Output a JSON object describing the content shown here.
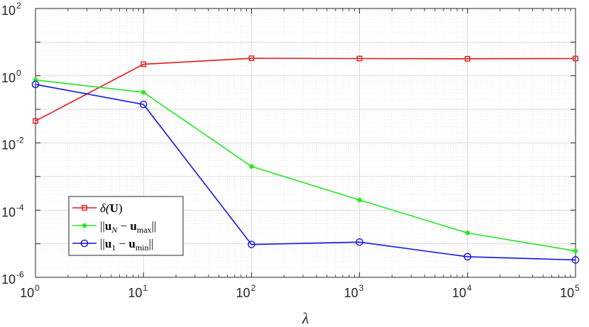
{
  "chart_data": {
    "type": "line",
    "xscale": "log",
    "yscale": "log",
    "xlim": [
      1,
      100000
    ],
    "ylim": [
      1e-06,
      100
    ],
    "xlabel": "λ",
    "ylabel": "",
    "grid": true,
    "minor_grid": true,
    "legend_position": "lower-left",
    "x": [
      1,
      10,
      100,
      1000,
      10000,
      100000
    ],
    "xticks": [
      {
        "base": "10",
        "exp": "0"
      },
      {
        "base": "10",
        "exp": "1"
      },
      {
        "base": "10",
        "exp": "2"
      },
      {
        "base": "10",
        "exp": "3"
      },
      {
        "base": "10",
        "exp": "4"
      },
      {
        "base": "10",
        "exp": "5"
      }
    ],
    "yticks": [
      {
        "base": "10",
        "exp": "-6",
        "value": 1e-06
      },
      {
        "base": "10",
        "exp": "-4",
        "value": 0.0001
      },
      {
        "base": "10",
        "exp": "-2",
        "value": 0.01
      },
      {
        "base": "10",
        "exp": "0",
        "value": 1
      },
      {
        "base": "10",
        "exp": "2",
        "value": 100
      }
    ],
    "series": [
      {
        "name": "δ(U)",
        "legend_parts": [
          {
            "t": "δ(",
            "italic": false
          },
          {
            "t": "U",
            "bold": true
          },
          {
            "t": ")"
          }
        ],
        "color": "#e31a1c",
        "marker": "square",
        "values": [
          0.045,
          2.2,
          3.3,
          3.25,
          3.2,
          3.25
        ]
      },
      {
        "name": "||uN − umax||",
        "legend_parts": [
          {
            "t": "||"
          },
          {
            "t": "u",
            "bold": true
          },
          {
            "t": "N",
            "sub": true,
            "italic": true
          },
          {
            "t": " − "
          },
          {
            "t": "u",
            "bold": true
          },
          {
            "t": "max",
            "sub": true
          },
          {
            "t": "||"
          }
        ],
        "color": "#22e81f",
        "marker": "asterisk",
        "values": [
          0.75,
          0.32,
          0.002,
          0.0002,
          2.1e-05,
          6.1e-06
        ]
      },
      {
        "name": "||u1 − umin||",
        "legend_parts": [
          {
            "t": "||"
          },
          {
            "t": "u",
            "bold": true
          },
          {
            "t": "1",
            "sub": true
          },
          {
            "t": " − "
          },
          {
            "t": "u",
            "bold": true
          },
          {
            "t": "min",
            "sub": true
          },
          {
            "t": "||"
          }
        ],
        "color": "#1414e6",
        "marker": "circle",
        "values": [
          0.55,
          0.14,
          9.5e-06,
          1.12e-05,
          4.1e-06,
          3.3e-06
        ]
      }
    ]
  }
}
